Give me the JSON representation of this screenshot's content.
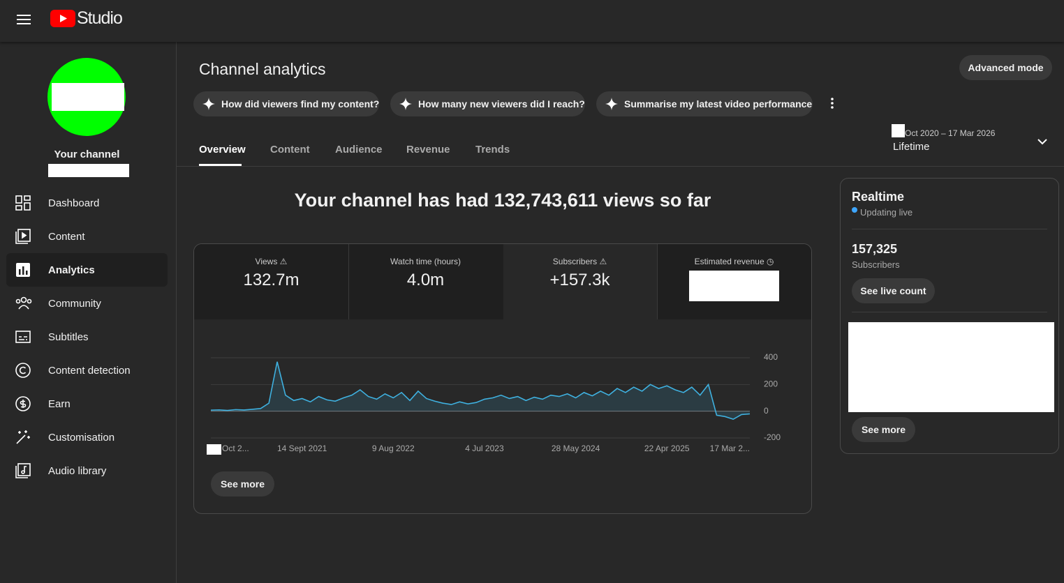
{
  "header": {
    "logo_text": "Studio"
  },
  "sidebar": {
    "channel_label": "Your channel",
    "nav": [
      "Dashboard",
      "Content",
      "Analytics",
      "Community",
      "Subtitles",
      "Content detection",
      "Earn",
      "Customisation",
      "Audio library"
    ]
  },
  "main": {
    "title": "Channel analytics",
    "advanced_mode": "Advanced mode",
    "prompts": [
      "How did viewers find my content?",
      "How many new viewers did I reach?",
      "Summarise my latest video performance"
    ],
    "tabs": [
      "Overview",
      "Content",
      "Audience",
      "Revenue",
      "Trends"
    ],
    "date_range": {
      "range": "Oct 2020 – 17 Mar 2026",
      "label": "Lifetime"
    },
    "headline": "Your channel has had 132,743,611 views so far",
    "metrics": [
      {
        "label": "Views",
        "value": "132.7m"
      },
      {
        "label": "Watch time (hours)",
        "value": "4.0m"
      },
      {
        "label": "Subscribers",
        "value": "+157.3k"
      },
      {
        "label": "Estimated revenue"
      }
    ],
    "see_more": "See more"
  },
  "chart_data": {
    "type": "line",
    "categories": [
      "Oct 2...",
      null,
      null,
      null,
      null,
      null,
      null,
      null,
      null,
      null,
      null,
      "14 Sept 2021",
      null,
      null,
      null,
      null,
      null,
      null,
      null,
      null,
      null,
      null,
      "9 Aug 2022",
      null,
      null,
      null,
      null,
      null,
      null,
      null,
      null,
      null,
      null,
      "4 Jul 2023",
      null,
      null,
      null,
      null,
      null,
      null,
      null,
      null,
      null,
      null,
      "28 May 2024",
      null,
      null,
      null,
      null,
      null,
      null,
      null,
      null,
      null,
      null,
      "22 Apr 2025",
      null,
      null,
      null,
      null,
      null,
      null,
      null,
      null,
      null,
      "17 Mar 2..."
    ],
    "series": [
      {
        "color": "#3fb1e0",
        "values": [
          8,
          10,
          6,
          12,
          9,
          14,
          20,
          60,
          370,
          120,
          80,
          95,
          70,
          110,
          85,
          75,
          100,
          120,
          160,
          110,
          90,
          130,
          100,
          140,
          80,
          150,
          95,
          75,
          60,
          50,
          70,
          55,
          65,
          90,
          100,
          120,
          95,
          110,
          80,
          105,
          90,
          120,
          110,
          130,
          100,
          140,
          115,
          150,
          120,
          170,
          140,
          180,
          150,
          200,
          170,
          190,
          160,
          140,
          180,
          120,
          200,
          -30,
          -40,
          -60,
          -25,
          -20
        ]
      }
    ],
    "ylim": [
      -200,
      400
    ],
    "yticks": [
      400,
      200,
      0,
      -200
    ],
    "grid": true
  },
  "realtime": {
    "title": "Realtime",
    "status": "Updating live",
    "count": "157,325",
    "count_label": "Subscribers",
    "button": "See live count",
    "see_more": "See more"
  }
}
